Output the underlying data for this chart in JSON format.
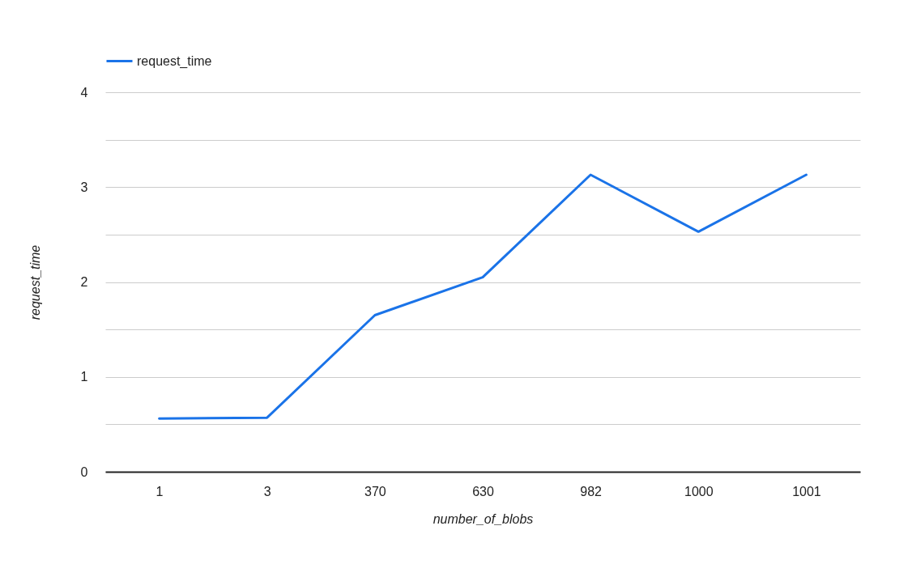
{
  "chart_data": {
    "type": "line",
    "xlabel": "number_of_blobs",
    "ylabel": "request_time",
    "categories": [
      "1",
      "3",
      "370",
      "630",
      "982",
      "1000",
      "1001"
    ],
    "series": [
      {
        "name": "request_time",
        "color": "#1a73e8",
        "values": [
          0.56,
          0.57,
          1.65,
          2.05,
          3.13,
          2.53,
          3.13
        ]
      }
    ],
    "ylim": [
      0,
      4
    ],
    "yticks": [
      0,
      {
        "value": 0.5,
        "label": null
      },
      1,
      {
        "value": 1.5,
        "label": null
      },
      2,
      {
        "value": 2.5,
        "label": null
      },
      3,
      {
        "value": 3.5,
        "label": null
      },
      4
    ],
    "grid": "y",
    "legend": "top left",
    "line_style": "solid"
  }
}
